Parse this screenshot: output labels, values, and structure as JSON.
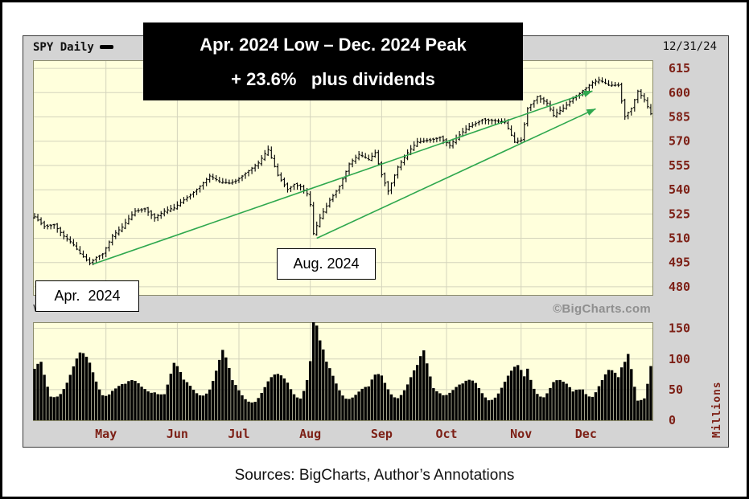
{
  "frame": {
    "symbol_label": "SPY Daily",
    "date_label": "12/31/24",
    "volume_label": "Volume",
    "watermark": "©BigCharts.com",
    "millions_label": "Millions"
  },
  "annotation_box": {
    "line1": "Apr. 2024 Low – Dec. 2024 Peak",
    "line2": "+ 23.6%   plus dividends"
  },
  "callouts": [
    {
      "label": "Apr.  2024"
    },
    {
      "label": "Aug. 2024"
    }
  ],
  "caption": "Sources: BigCharts, Author’s Annotations",
  "colors": {
    "panel_bg": "#d4d4d4",
    "plot_bg": "#ffffdc",
    "plot_border": "#8a8a6a",
    "grid": "#d4d4bc",
    "axis_text": "#7d2016",
    "bar": "#000000",
    "arrow": "#2fa84e",
    "watermark": "#8f8f8f"
  },
  "chart_data": {
    "type": "ohlc+volume",
    "symbol": "SPY",
    "interval": "Daily",
    "as_of": "12/31/24",
    "gain_annotation": "+ 23.6% plus dividends (Apr. 2024 low to Dec. 2024 peak)",
    "num_days": 191,
    "price_axis": {
      "ticks": [
        480,
        495,
        510,
        525,
        540,
        555,
        570,
        585,
        600,
        615
      ],
      "range": [
        475,
        620
      ]
    },
    "volume_axis": {
      "ticks": [
        0,
        50,
        100,
        150
      ],
      "range": [
        0,
        160
      ],
      "unit": "Millions"
    },
    "months": [
      {
        "label": "May",
        "day": 22
      },
      {
        "label": "Jun",
        "day": 44
      },
      {
        "label": "Jul",
        "day": 63
      },
      {
        "label": "Aug",
        "day": 85
      },
      {
        "label": "Sep",
        "day": 107
      },
      {
        "label": "Oct",
        "day": 127
      },
      {
        "label": "Nov",
        "day": 150
      },
      {
        "label": "Dec",
        "day": 170
      }
    ],
    "price_anchors": [
      [
        0,
        523
      ],
      [
        3,
        518
      ],
      [
        6,
        519
      ],
      [
        9,
        511
      ],
      [
        12,
        505
      ],
      [
        14,
        500
      ],
      [
        17,
        495
      ],
      [
        19,
        499
      ],
      [
        21,
        501
      ],
      [
        24,
        511
      ],
      [
        27,
        516
      ],
      [
        31,
        527
      ],
      [
        34,
        529
      ],
      [
        37,
        523
      ],
      [
        40,
        526
      ],
      [
        43,
        528
      ],
      [
        46,
        534
      ],
      [
        50,
        541
      ],
      [
        54,
        548
      ],
      [
        57,
        544
      ],
      [
        60,
        544
      ],
      [
        62,
        546
      ],
      [
        65,
        551
      ],
      [
        69,
        556
      ],
      [
        72,
        564
      ],
      [
        75,
        549
      ],
      [
        78,
        541
      ],
      [
        80,
        544
      ],
      [
        82,
        542
      ],
      [
        84,
        537
      ],
      [
        85,
        530
      ],
      [
        86,
        512
      ],
      [
        88,
        522
      ],
      [
        91,
        534
      ],
      [
        94,
        543
      ],
      [
        97,
        556
      ],
      [
        100,
        561
      ],
      [
        103,
        558
      ],
      [
        105,
        563
      ],
      [
        107,
        550
      ],
      [
        109,
        540
      ],
      [
        112,
        554
      ],
      [
        115,
        562
      ],
      [
        118,
        569
      ],
      [
        121,
        571
      ],
      [
        125,
        573
      ],
      [
        128,
        567
      ],
      [
        131,
        573
      ],
      [
        134,
        579
      ],
      [
        138,
        584
      ],
      [
        141,
        583
      ],
      [
        145,
        581
      ],
      [
        148,
        569
      ],
      [
        150,
        571
      ],
      [
        152,
        591
      ],
      [
        155,
        598
      ],
      [
        158,
        593
      ],
      [
        160,
        585
      ],
      [
        163,
        590
      ],
      [
        166,
        597
      ],
      [
        169,
        602
      ],
      [
        172,
        606
      ],
      [
        174,
        607
      ],
      [
        177,
        604
      ],
      [
        180,
        605
      ],
      [
        182,
        586
      ],
      [
        184,
        591
      ],
      [
        186,
        601
      ],
      [
        188,
        595
      ],
      [
        190,
        586
      ]
    ],
    "volume_anchors": [
      [
        0,
        60
      ],
      [
        2,
        75
      ],
      [
        5,
        45
      ],
      [
        9,
        65
      ],
      [
        14,
        80
      ],
      [
        17,
        75
      ],
      [
        21,
        55
      ],
      [
        24,
        60
      ],
      [
        28,
        45
      ],
      [
        33,
        50
      ],
      [
        37,
        65
      ],
      [
        40,
        45
      ],
      [
        43,
        70
      ],
      [
        46,
        50
      ],
      [
        50,
        55
      ],
      [
        54,
        60
      ],
      [
        58,
        85
      ],
      [
        61,
        50
      ],
      [
        64,
        45
      ],
      [
        68,
        40
      ],
      [
        72,
        50
      ],
      [
        75,
        55
      ],
      [
        78,
        60
      ],
      [
        82,
        50
      ],
      [
        84,
        75
      ],
      [
        85,
        95
      ],
      [
        86,
        145
      ],
      [
        87,
        120
      ],
      [
        88,
        95
      ],
      [
        90,
        70
      ],
      [
        93,
        60
      ],
      [
        96,
        50
      ],
      [
        100,
        45
      ],
      [
        103,
        40
      ],
      [
        105,
        55
      ],
      [
        107,
        65
      ],
      [
        109,
        60
      ],
      [
        112,
        50
      ],
      [
        115,
        55
      ],
      [
        118,
        65
      ],
      [
        120,
        85
      ],
      [
        123,
        55
      ],
      [
        125,
        60
      ],
      [
        128,
        55
      ],
      [
        132,
        45
      ],
      [
        136,
        50
      ],
      [
        140,
        45
      ],
      [
        144,
        55
      ],
      [
        147,
        60
      ],
      [
        149,
        65
      ],
      [
        151,
        60
      ],
      [
        152,
        80
      ],
      [
        154,
        65
      ],
      [
        157,
        50
      ],
      [
        160,
        55
      ],
      [
        163,
        45
      ],
      [
        166,
        40
      ],
      [
        169,
        65
      ],
      [
        172,
        50
      ],
      [
        174,
        55
      ],
      [
        177,
        60
      ],
      [
        180,
        55
      ],
      [
        182,
        95
      ],
      [
        183,
        125
      ],
      [
        184,
        110
      ],
      [
        186,
        45
      ],
      [
        188,
        40
      ],
      [
        190,
        75
      ]
    ],
    "trend_arrows": [
      {
        "from": [
          18,
          494
        ],
        "to": [
          172,
          601
        ]
      },
      {
        "from": [
          87,
          510
        ],
        "to": [
          173,
          590
        ]
      }
    ]
  }
}
